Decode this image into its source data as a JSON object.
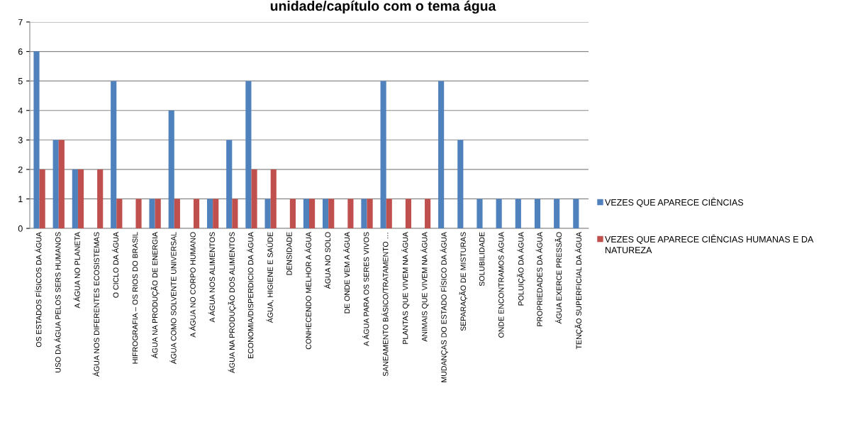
{
  "chart_data": {
    "type": "bar",
    "title": "unidade/capítulo com o tema água",
    "categories": [
      "OS ESTADOS FÍSICOS DA ÁGUA",
      "USO DA ÁGUA PELOS SERS HUMANOS",
      "A ÁGUA NO PLANETA",
      "ÁGUA NOS DIFERENTES ECOSISTEMAS",
      "O CICLO DA ÁGUA",
      "HIFROGRAFIA – OS RIOS DO BRASIL",
      "ÁGUA NA PRODUÇÃO DE ENERGIA",
      "ÁGUA COMO SOLVENTE UNIVERSAL",
      "A ÁGUA NO CORPO HUMANO",
      "A ÁGUA NOS ALIMENTOS",
      "ÁGUA NA PRODUÇÃO DOS ALIMENTOS",
      "ECONOMIA/DISPERDICIO DA ÁGUA",
      "ÁGUA, HIGIENE E SAÚDE",
      "DENSIDADE",
      "CONHECENDO MELHOR A ÁGUA",
      "ÁGUA NO SOLO",
      "DE ONDE VEM A ÁGUA",
      "A ÁGUA PARA OS SERES VIVOS",
      "SANEAMENTO BÁSICO/TRATAMENTO …",
      "PLANTAS QUE VIVEM NA ÁGUA",
      "ANIMAIS QUE VIVEM NA ÁGUA",
      "MUDANÇAS DO ESTADO FÍSICO DA ÁGUA",
      "SEPARAÇÃO DE MISTURAS",
      "SOLUBILIDADE",
      "ONDE ENCONTRAMOS ÁGUA",
      "POLUIÇÃO DA ÁGUA",
      "PROPRIEDADES DA ÁGUA",
      "ÁGUA EXERCE PRESSÃO",
      "TENÇÃO SUPERFICIAL DA ÁGUA"
    ],
    "series": [
      {
        "name": "VEZES QUE APARECE CIÊNCIAS",
        "color": "#4f81bd",
        "values": [
          6,
          3,
          2,
          null,
          5,
          null,
          1,
          4,
          null,
          1,
          3,
          5,
          1,
          null,
          1,
          1,
          null,
          1,
          5,
          null,
          null,
          5,
          3,
          1,
          1,
          1,
          1,
          1,
          1
        ]
      },
      {
        "name": "VEZES QUE APARECE CIÊNCIAS HUMANAS E DA NATUREZA",
        "color": "#c0504d",
        "values": [
          2,
          3,
          2,
          2,
          1,
          1,
          1,
          1,
          1,
          1,
          1,
          2,
          2,
          1,
          1,
          1,
          1,
          1,
          1,
          1,
          1,
          null,
          null,
          null,
          null,
          null,
          null,
          null,
          null
        ]
      }
    ],
    "ylim": [
      0,
      7
    ],
    "yticks": [
      0,
      1,
      2,
      3,
      4,
      5,
      6,
      7
    ],
    "grid": "y",
    "legend": "right"
  }
}
